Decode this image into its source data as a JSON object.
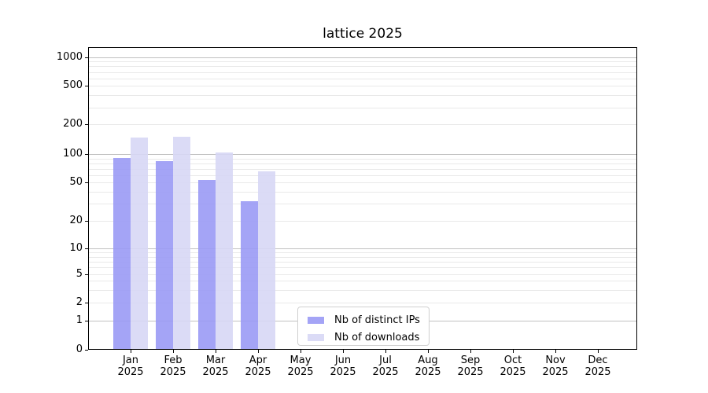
{
  "chart_data": {
    "type": "bar",
    "title": "lattice 2025",
    "categories": [
      "Jan",
      "Feb",
      "Mar",
      "Apr",
      "May",
      "Jun",
      "Jul",
      "Aug",
      "Sep",
      "Oct",
      "Nov",
      "Dec"
    ],
    "year_label": "2025",
    "series": [
      {
        "name": "Nb of distinct IPs",
        "color": "rgba(154,154,245,0.9)",
        "values": [
          91,
          85,
          53,
          32,
          null,
          null,
          null,
          null,
          null,
          null,
          null,
          null
        ]
      },
      {
        "name": "Nb of downloads",
        "color": "rgba(215,215,245,0.9)",
        "values": [
          146,
          150,
          103,
          66,
          null,
          null,
          null,
          null,
          null,
          null,
          null,
          null
        ]
      }
    ],
    "xlabel": "",
    "ylabel": "",
    "yscale": "asinh-log",
    "yticks": [
      0,
      1,
      2,
      5,
      10,
      20,
      50,
      100,
      200,
      500,
      1000
    ],
    "major_grid_values": [
      1,
      10,
      100,
      1000
    ],
    "minor_grid_values": [
      2,
      3,
      4,
      5,
      6,
      7,
      8,
      9,
      20,
      30,
      40,
      50,
      60,
      70,
      80,
      90,
      200,
      300,
      400,
      500,
      600,
      700,
      800,
      900
    ],
    "ylim": [
      0,
      1300
    ],
    "grid": "horizontal major+minor",
    "legend_position": "lower-center",
    "colors": {
      "bar_distinct_ips": "#a4a4f6",
      "bar_downloads": "#dbdbf6",
      "major_grid": "#c0c0c0",
      "minor_grid": "#e9e9e9",
      "spine": "#000000",
      "legend_border": "#d0d0d0"
    }
  }
}
